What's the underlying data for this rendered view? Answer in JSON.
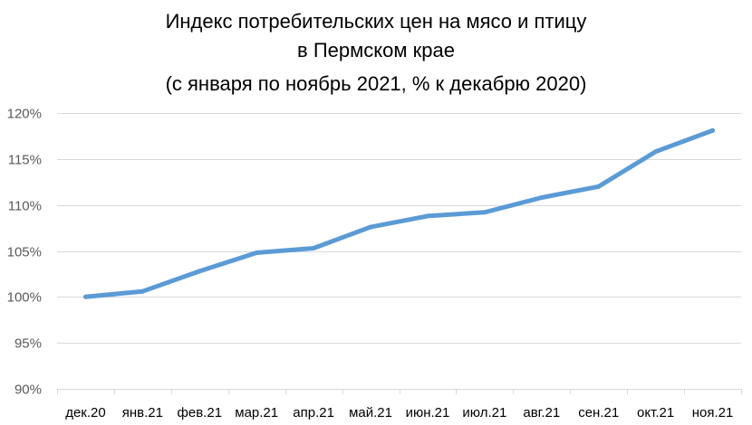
{
  "chart_data": {
    "type": "line",
    "title_lines": [
      "Индекс потребительских цен на мясо и птицу",
      "в Пермском крае",
      "(с января по ноябрь 2021, % к декабрю 2020)"
    ],
    "xlabel": "",
    "ylabel": "",
    "categories": [
      "дек.20",
      "янв.21",
      "фев.21",
      "мар.21",
      "апр.21",
      "май.21",
      "июн.21",
      "июл.21",
      "авг.21",
      "сен.21",
      "окт.21",
      "ноя.21"
    ],
    "series": [
      {
        "values": [
          100.0,
          100.6,
          102.8,
          104.8,
          105.3,
          107.6,
          108.8,
          109.2,
          110.8,
          112.0,
          115.8,
          118.1
        ]
      }
    ],
    "ylim": [
      90,
      120
    ],
    "yticks": [
      90,
      95,
      100,
      105,
      110,
      115,
      120
    ],
    "ytick_labels": [
      "90%",
      "95%",
      "100%",
      "105%",
      "110%",
      "115%",
      "120%"
    ],
    "grid": true,
    "legend": "none",
    "colors": {
      "line": "#5b9bd5",
      "grid": "#d9d9d9",
      "axis_text": "#595959"
    }
  }
}
